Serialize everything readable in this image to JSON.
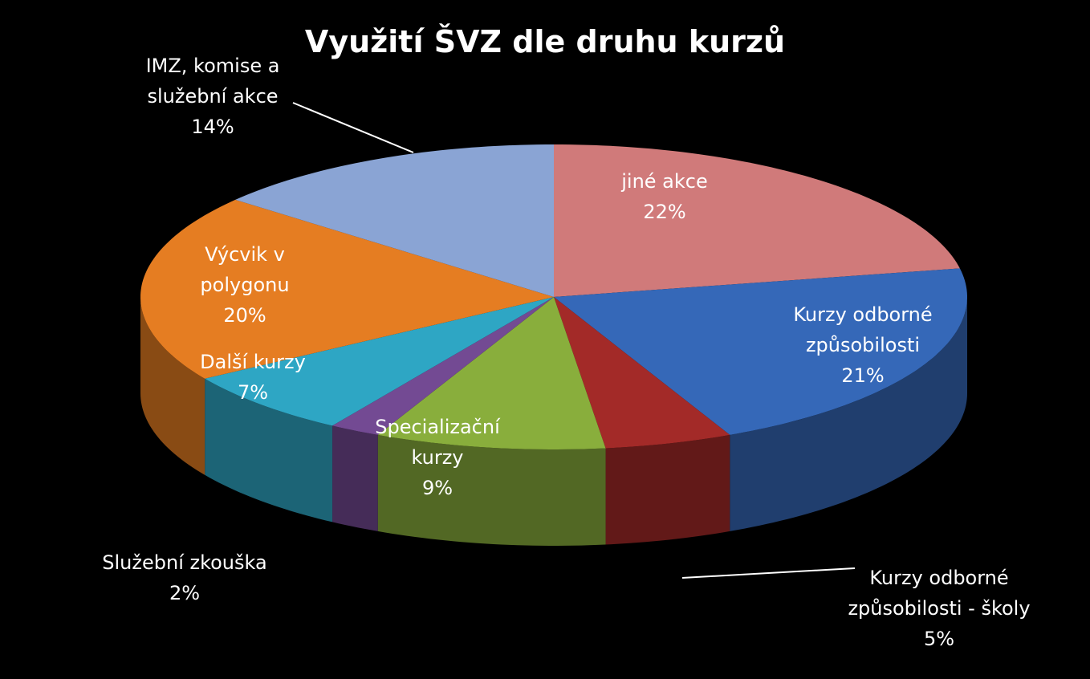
{
  "chart_data": {
    "type": "pie",
    "title": "Využití ŠVZ dle druhu  kurzů",
    "categories": [
      "jiné akce",
      "Kurzy odborné způsobilosti",
      "Kurzy odborné způsobilosti - školy",
      "Specializační kurzy",
      "Služební zkouška",
      "Další kurzy",
      "Výcvik v polygonu",
      "IMZ, komise a služební akce"
    ],
    "values": [
      22,
      21,
      5,
      9,
      2,
      7,
      20,
      14
    ],
    "value_labels": [
      "22%",
      "21%",
      "5%",
      "9%",
      "2%",
      "7%",
      "20%",
      "14%"
    ],
    "colors": [
      "#d07a7a",
      "#3568b8",
      "#a32a28",
      "#89ae3c",
      "#734a93",
      "#2ea6c4",
      "#e57d22",
      "#8aa4d4"
    ]
  }
}
